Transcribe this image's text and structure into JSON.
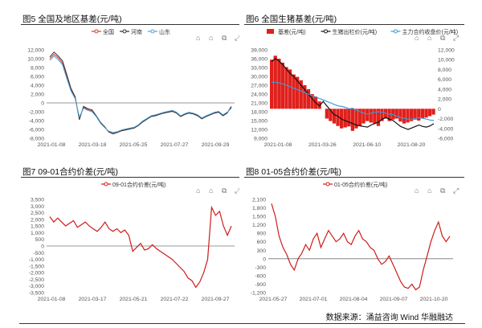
{
  "source_text": "数据来源：涌益咨询 Wind 华融融达",
  "toolbar_icons": [
    "tag-icon",
    "bookmark-icon",
    "copy-icon",
    "expand-icon"
  ],
  "chart_data": [
    {
      "id": "fig5",
      "type": "line",
      "title": "图5 全国及地区基差(元/吨)",
      "ylim": [
        -8000,
        12000
      ],
      "yticks": [
        "12,000",
        "10,000",
        "8,000",
        "6,000",
        "4,000",
        "2,000",
        "0",
        "-2,000",
        "-4,000",
        "-6,000",
        "-8,000"
      ],
      "x_tick_labels": [
        "2021-01-08",
        "2021-03-18",
        "2021-05-25",
        "2021-07-27",
        "2021-09-29"
      ],
      "legend": [
        "全国",
        "河南",
        "山东"
      ],
      "colors": [
        "#e0392b",
        "#2e2e2e",
        "#4aa3df"
      ],
      "series": [
        {
          "name": "全国",
          "values": [
            10000,
            11000,
            10200,
            9000,
            6000,
            3000,
            1200,
            -3500,
            -1000,
            -1500,
            -1800,
            -3000,
            -4500,
            -5500,
            -6500,
            -6800,
            -6600,
            -6200,
            -6000,
            -5800,
            -5600,
            -5000,
            -4200,
            -3600,
            -3000,
            -2800,
            -2500,
            -2200,
            -2000,
            -1800,
            -2200,
            -3000,
            -2500,
            -2200,
            -2400,
            -2800,
            -3500,
            -3000,
            -2600,
            -2200,
            -2000,
            -2800,
            -2200,
            -1000
          ]
        },
        {
          "name": "河南",
          "values": [
            10400,
            11500,
            10600,
            9500,
            6500,
            3300,
            1400,
            -3800,
            -800,
            -1300,
            -1600,
            -2900,
            -4400,
            -5400,
            -6600,
            -7000,
            -6700,
            -6300,
            -6100,
            -5900,
            -5700,
            -5100,
            -4300,
            -3700,
            -3100,
            -2900,
            -2600,
            -2300,
            -2100,
            -1900,
            -2300,
            -3100,
            -2600,
            -2300,
            -2500,
            -2900,
            -3600,
            -3100,
            -2700,
            -2300,
            -2100,
            -2900,
            -2300,
            -800
          ]
        },
        {
          "name": "山东",
          "values": [
            9600,
            10600,
            9800,
            8600,
            5600,
            2700,
            1000,
            -3200,
            -1200,
            -1700,
            -2000,
            -3100,
            -4600,
            -5600,
            -6400,
            -6700,
            -6500,
            -6100,
            -5900,
            -5700,
            -5500,
            -4900,
            -4100,
            -3500,
            -2900,
            -2700,
            -2400,
            -2100,
            -1900,
            -1700,
            -2100,
            -2900,
            -2400,
            -2100,
            -2300,
            -2700,
            -3400,
            -2900,
            -2500,
            -2100,
            -1900,
            -2700,
            -2100,
            -1200
          ]
        }
      ]
    },
    {
      "id": "fig6",
      "type": "bar+line",
      "title": "图6 全国生猪基差(元/吨)",
      "ylim_left": [
        9000,
        39000
      ],
      "ylim_right": [
        -6000,
        12000
      ],
      "yticks_left": [
        "39,000",
        "36,000",
        "33,000",
        "30,000",
        "27,000",
        "24,000",
        "21,000",
        "18,000",
        "15,000",
        "12,000",
        "9,000"
      ],
      "yticks_right": [
        "12,000",
        "10,000",
        "8,000",
        "6,000",
        "4,000",
        "2,000",
        "0",
        "-2,000",
        "-4,000",
        "-6,000"
      ],
      "x_tick_labels": [
        "2021-01-08",
        "2021-03-26",
        "2021-06-10",
        "2021-08-20"
      ],
      "legend": [
        "基差(元/吨)",
        "生猪出栏价(元/吨)",
        "主力合约收盘价(元/吨)"
      ],
      "colors": [
        "#e0201c",
        "#111111",
        "#3a9bd9"
      ],
      "series": [
        {
          "name": "基差(元/吨)",
          "axis": "right",
          "values": [
            10000,
            10800,
            10200,
            9400,
            8500,
            8000,
            7000,
            6500,
            5800,
            4800,
            4000,
            3000,
            2500,
            1500,
            0,
            -2000,
            -2500,
            -3000,
            -3500,
            -4000,
            -3800,
            -3600,
            -4500,
            -4000,
            -3500,
            -3000,
            -2500,
            -2800,
            -3000,
            -3500,
            -2500,
            -2000,
            -2500,
            -2200,
            -2000,
            -2600,
            -3000,
            -2800,
            -2500,
            -2200,
            -2400,
            -2000,
            -1800,
            -1500,
            -1200
          ]
        },
        {
          "name": "生猪出栏价(元/吨)",
          "axis": "left",
          "values": [
            35000,
            36000,
            35200,
            34000,
            32500,
            31000,
            30000,
            28500,
            27000,
            25500,
            24000,
            22500,
            21000,
            20000,
            21500,
            20000,
            18500,
            17000,
            16500,
            15500,
            15000,
            14500,
            14000,
            13500,
            13200,
            13000,
            12800,
            13500,
            14000,
            14500,
            15500,
            16000,
            15500,
            15000,
            14000,
            13000,
            12500,
            12000,
            12500,
            13000,
            13500,
            13000,
            12800,
            13200,
            14000
          ]
        },
        {
          "name": "主力合约收盘价(元/吨)",
          "axis": "left",
          "values": [
            28000,
            28000,
            27800,
            27500,
            27000,
            26500,
            26000,
            25500,
            25000,
            24500,
            24000,
            23500,
            23000,
            22500,
            22000,
            21500,
            21000,
            20500,
            20000,
            19800,
            19500,
            19000,
            19200,
            18500,
            18000,
            17500,
            17200,
            17500,
            17800,
            18000,
            17800,
            17500,
            17200,
            17000,
            16500,
            16000,
            15800,
            15500,
            15500,
            15800,
            16000,
            15800,
            15500,
            15200,
            15000
          ]
        }
      ]
    },
    {
      "id": "fig7",
      "type": "line",
      "title": "图7 09-01合约价差(元/吨)",
      "ylim": [
        -3500,
        3500
      ],
      "yticks": [
        "3,500",
        "3,000",
        "2,500",
        "2,000",
        "1,500",
        "1,000",
        "500",
        "0",
        "-500",
        "-1,000",
        "-1,500",
        "-2,000",
        "-2,500",
        "-3,000",
        "-3,500"
      ],
      "x_tick_labels": [
        "2021-01-08",
        "2021-03-17",
        "2021-05-21",
        "2021-07-22",
        "2021-09-27"
      ],
      "legend": [
        "09-01合约价差(元/吨)"
      ],
      "colors": [
        "#d01c1c"
      ],
      "series": [
        {
          "name": "09-01合约价差(元/吨)",
          "values": [
            2200,
            1800,
            2100,
            1800,
            1500,
            1700,
            1900,
            1400,
            1600,
            1800,
            1500,
            1300,
            1100,
            1400,
            1800,
            1300,
            1100,
            1300,
            1000,
            1200,
            800,
            -400,
            -100,
            200,
            -300,
            -200,
            100,
            -200,
            -400,
            -600,
            -800,
            -1000,
            -1300,
            -1600,
            -1900,
            -2400,
            -2600,
            -3100,
            -2700,
            -2000,
            -1000,
            2900,
            2300,
            2600,
            1500,
            800,
            1500
          ]
        }
      ]
    },
    {
      "id": "fig8",
      "type": "line",
      "title": "图8 01-05合约价差(元/吨)",
      "ylim": [
        -1200,
        2100
      ],
      "yticks": [
        "2,100",
        "1,800",
        "1,500",
        "1,200",
        "900",
        "600",
        "300",
        "0",
        "-300",
        "-600",
        "-900",
        "-1,200"
      ],
      "x_tick_labels": [
        "2021-05-27",
        "2021-07-01",
        "2021-08-04",
        "2021-09-07",
        "2021-10-20"
      ],
      "legend": [
        "01-05合约价差(元/吨)"
      ],
      "colors": [
        "#d01c1c"
      ],
      "series": [
        {
          "name": "01-05合约价差(元/吨)",
          "values": [
            1950,
            1500,
            800,
            400,
            150,
            -200,
            -400,
            0,
            200,
            500,
            300,
            700,
            900,
            400,
            700,
            1000,
            800,
            600,
            700,
            900,
            600,
            500,
            800,
            1000,
            700,
            600,
            400,
            300,
            0,
            -200,
            -100,
            100,
            -200,
            -500,
            -800,
            -1000,
            -1050,
            -900,
            -1100,
            -1000,
            -400,
            100,
            600,
            1000,
            1300,
            800,
            600,
            800
          ]
        }
      ]
    }
  ]
}
